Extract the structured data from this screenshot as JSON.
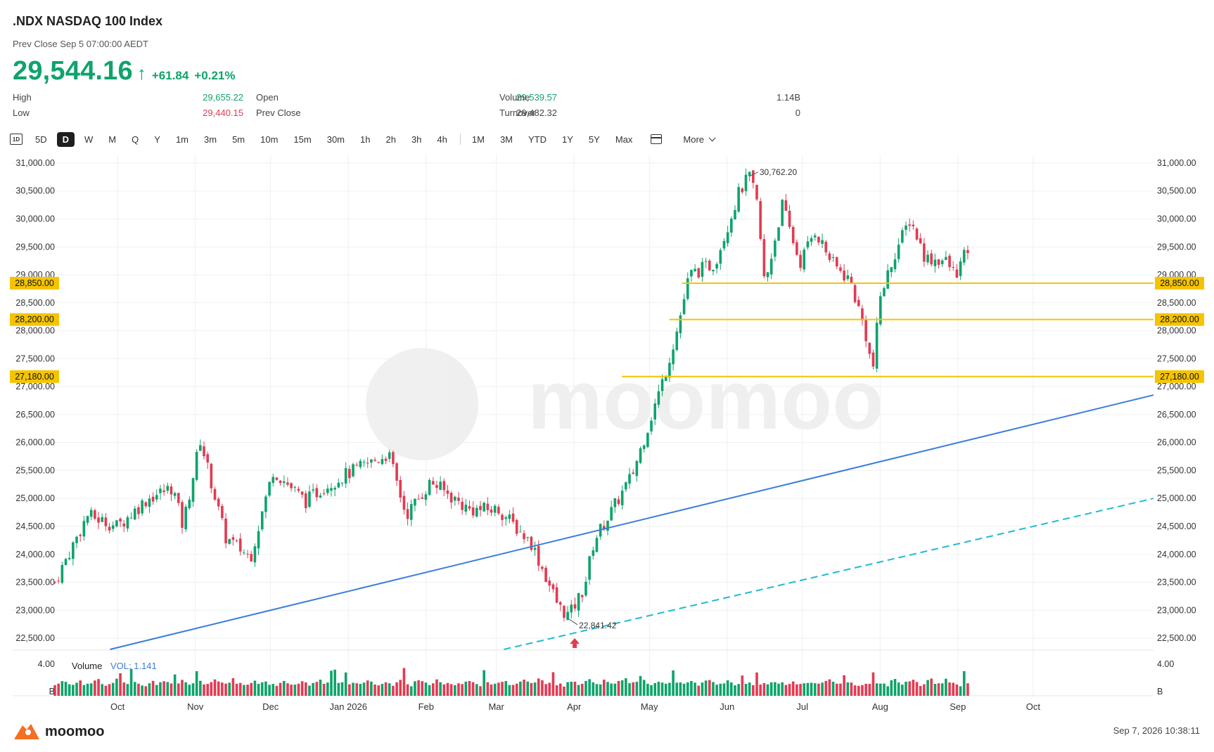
{
  "header": {
    "symbol": ".NDX  NASDAQ 100 Index",
    "prev_close_line": "Prev Close Sep 5 07:00:00 AEDT",
    "price": "29,544.16",
    "change": "+61.84",
    "change_pct": "+0.21%",
    "up_color": "#0ea36b",
    "down_color": "#e23b52"
  },
  "stats": {
    "high_label": "High",
    "high_value": "29,655.22",
    "low_label": "Low",
    "low_value": "29,440.15",
    "open_label": "Open",
    "open_value": "29,539.57",
    "prevclose_label": "Prev Close",
    "prevclose_value": "29,482.32",
    "volume_label": "Volume",
    "volume_value": "1.14B",
    "turnover_label": "Turnover",
    "turnover_value": "0"
  },
  "toolbar": {
    "icon_label": "1D",
    "items": [
      "5D",
      "D",
      "W",
      "M",
      "Q",
      "Y",
      "1m",
      "3m",
      "5m",
      "10m",
      "15m",
      "30m",
      "1h",
      "2h",
      "3h",
      "4h"
    ],
    "items2": [
      "1M",
      "3M",
      "YTD",
      "1Y",
      "5Y",
      "Max"
    ],
    "active": "D",
    "more_label": "More"
  },
  "chart_data": {
    "type": "candlestick",
    "ylim": [
      22350,
      31150
    ],
    "y_ticks": [
      31000,
      30500,
      30000,
      29500,
      29000,
      28500,
      28000,
      27500,
      27000,
      26500,
      26000,
      25500,
      25000,
      24500,
      24000,
      23500,
      23000,
      22500
    ],
    "y_tick_labels": [
      "31,000.00",
      "30,500.00",
      "30,000.00",
      "29,500.00",
      "29,000.00",
      "28,500.00",
      "28,000.00",
      "27,500.00",
      "27,000.00",
      "26,500.00",
      "26,000.00",
      "25,500.00",
      "25,000.00",
      "24,500.00",
      "24,000.00",
      "23,500.00",
      "23,000.00",
      "22,500.00"
    ],
    "x_labels": [
      "Oct",
      "Nov",
      "Dec",
      "Jan 2026",
      "Feb",
      "Mar",
      "Apr",
      "May",
      "Jun",
      "Jul",
      "Aug",
      "Sep",
      "Oct"
    ],
    "x_label_days": [
      0,
      31,
      61,
      92,
      123,
      151,
      182,
      212,
      243,
      273,
      304,
      335,
      365
    ],
    "x_start_day": -25,
    "x_end_day": 413,
    "last_data_day": 340,
    "price_path": [
      [
        -25,
        23500
      ],
      [
        -12,
        24700
      ],
      [
        0,
        24500
      ],
      [
        12,
        25000
      ],
      [
        22,
        25200
      ],
      [
        26,
        24500
      ],
      [
        33,
        26050
      ],
      [
        43,
        24300
      ],
      [
        53,
        23950
      ],
      [
        62,
        25500
      ],
      [
        75,
        24950
      ],
      [
        82,
        25200
      ],
      [
        92,
        25450
      ],
      [
        108,
        25800
      ],
      [
        115,
        24700
      ],
      [
        125,
        25300
      ],
      [
        140,
        24800
      ],
      [
        152,
        24800
      ],
      [
        165,
        24200
      ],
      [
        176,
        23050
      ],
      [
        180,
        22900
      ],
      [
        186,
        23400
      ],
      [
        190,
        24250
      ],
      [
        196,
        24700
      ],
      [
        205,
        25400
      ],
      [
        213,
        26500
      ],
      [
        218,
        27200
      ],
      [
        223,
        28000
      ],
      [
        228,
        29000
      ],
      [
        238,
        29200
      ],
      [
        248,
        30500
      ],
      [
        252,
        30762
      ],
      [
        255,
        30250
      ],
      [
        258,
        28800
      ],
      [
        265,
        30250
      ],
      [
        272,
        29200
      ],
      [
        278,
        29800
      ],
      [
        285,
        29200
      ],
      [
        292,
        28900
      ],
      [
        298,
        28000
      ],
      [
        301,
        27250
      ],
      [
        304,
        28600
      ],
      [
        310,
        29400
      ],
      [
        316,
        30000
      ],
      [
        322,
        29300
      ],
      [
        330,
        29250
      ],
      [
        334,
        29000
      ],
      [
        340,
        29544
      ]
    ],
    "volume_levels": [
      0.35,
      0.42,
      0.45,
      0.4,
      0.38,
      0.36,
      0.44,
      0.5,
      0.39,
      0.37,
      0.41,
      0.46,
      0.48,
      0.4,
      0.35,
      0.43,
      0.47,
      0.52,
      0.42,
      0.39,
      0.44,
      0.58,
      0.45,
      0.41,
      0.38,
      0.36,
      0.4,
      0.43
    ],
    "volume_ylim": [
      0,
      4.0
    ],
    "volume_tick_labels": [
      "4.00",
      "B"
    ],
    "volume_label": "Volume",
    "vol_value_label": "VOL: 1.141",
    "annotations": {
      "max_label": "30,762.20",
      "max_value": 30762.2,
      "max_day": 252,
      "min_label": "22,841.42",
      "min_value": 22841.42,
      "min_day": 180
    },
    "horizontal_levels": [
      {
        "value": 28850,
        "label": "28,850.00",
        "start_day": 225
      },
      {
        "value": 28200,
        "label": "28,200.00",
        "start_day": 220
      },
      {
        "value": 27180,
        "label": "27,180.00",
        "start_day": 201
      }
    ],
    "trendlines": [
      {
        "style": "solid",
        "color": "#3b7ddd",
        "from": [
          -3,
          22300
        ],
        "to": [
          413,
          26850
        ]
      },
      {
        "style": "dashed",
        "color": "#22bcd0",
        "from": [
          154,
          22300
        ],
        "to": [
          413,
          25000
        ]
      }
    ],
    "level_color": "#f5c400",
    "grid": true,
    "watermark": "moomoo"
  },
  "footer": {
    "brand": "moomoo",
    "timestamp": "Sep 7, 2026 10:38:11"
  }
}
